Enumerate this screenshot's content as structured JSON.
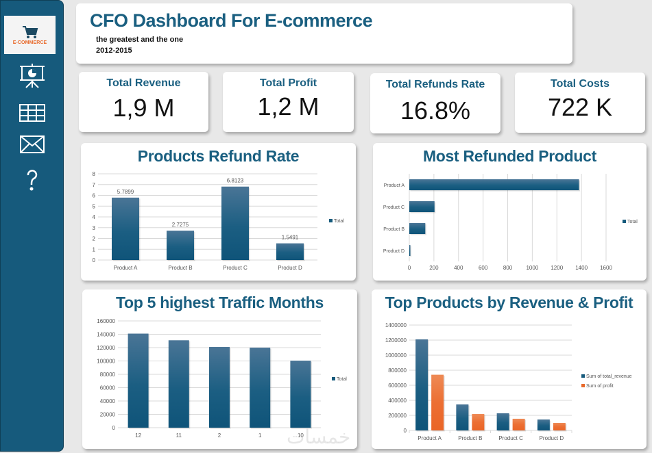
{
  "sidebar": {
    "logo_text": "E-COMMERCE",
    "items": [
      {
        "name": "presentation-icon"
      },
      {
        "name": "table-icon"
      },
      {
        "name": "mail-icon"
      },
      {
        "name": "help-icon"
      }
    ]
  },
  "header": {
    "title": "CFO Dashboard For E-commerce",
    "subtitle": "the greatest and the one",
    "years": "2012-2015"
  },
  "kpis": [
    {
      "label": "Total Revenue",
      "value": "1,9 M"
    },
    {
      "label": "Total Profit",
      "value": "1,2 M"
    },
    {
      "label": "Total Refunds Rate",
      "value": "16.8%"
    },
    {
      "label": "Total Costs",
      "value": "722 K"
    }
  ],
  "colors": {
    "primary": "#165a7c",
    "accent": "#e8692a",
    "title": "#1a5f80"
  },
  "watermark": "خمسات",
  "chart_data": [
    {
      "id": "refund-rate",
      "type": "bar",
      "title": "Products Refund Rate",
      "categories": [
        "Product A",
        "Product B",
        "Product C",
        "Product D"
      ],
      "values": [
        5.7899,
        2.7275,
        6.8123,
        1.5491
      ],
      "data_labels": [
        "5.7899",
        "2.7275",
        "6.8123",
        "1.5491"
      ],
      "ylim": [
        0,
        8
      ],
      "yticks": [
        0,
        1,
        2,
        3,
        4,
        5,
        6,
        7,
        8
      ],
      "legend": [
        "Total"
      ],
      "legend_position": "right",
      "grid": true
    },
    {
      "id": "most-refunded",
      "type": "bar",
      "orientation": "horizontal",
      "title": "Most Refunded Product",
      "categories": [
        "Product A",
        "Product C",
        "Product B",
        "Product D"
      ],
      "values": [
        1380,
        205,
        130,
        5
      ],
      "xlim": [
        0,
        1600
      ],
      "xticks": [
        0,
        200,
        400,
        600,
        800,
        1000,
        1200,
        1400,
        1600
      ],
      "legend": [
        "Total"
      ],
      "legend_position": "right",
      "grid": true
    },
    {
      "id": "traffic-months",
      "type": "bar",
      "title": "Top 5 highest Traffic Months",
      "categories": [
        "12",
        "11",
        "2",
        "1",
        "10"
      ],
      "values": [
        141000,
        131000,
        121000,
        120000,
        100500
      ],
      "ylim": [
        0,
        160000
      ],
      "yticks": [
        0,
        20000,
        40000,
        60000,
        80000,
        100000,
        120000,
        140000,
        160000
      ],
      "legend": [
        "Total"
      ],
      "legend_position": "right",
      "grid": true
    },
    {
      "id": "revenue-profit",
      "type": "bar",
      "title": "Top Products by Revenue & Profit",
      "categories": [
        "Product A",
        "Product B",
        "Product C",
        "Product D"
      ],
      "series": [
        {
          "name": "Sum of total_revenue",
          "values": [
            1210000,
            345000,
            228000,
            145000
          ]
        },
        {
          "name": "Sum of profit",
          "values": [
            740000,
            218000,
            155000,
            100000
          ]
        }
      ],
      "ylim": [
        0,
        1400000
      ],
      "yticks": [
        0,
        200000,
        400000,
        600000,
        800000,
        1000000,
        1200000,
        1400000
      ],
      "legend_position": "right",
      "grid": true
    }
  ]
}
